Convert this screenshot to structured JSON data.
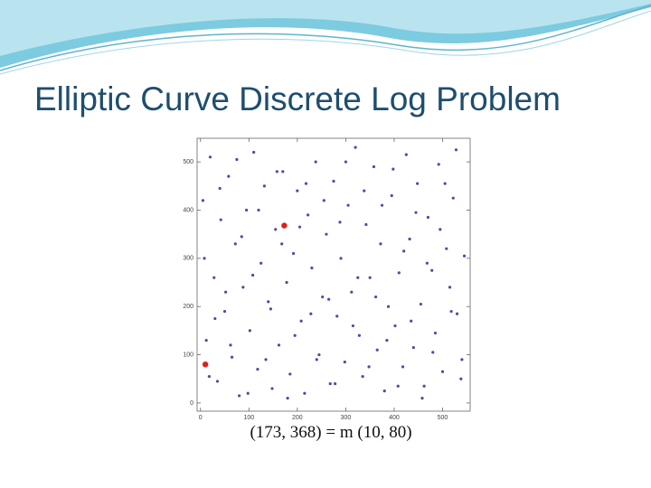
{
  "chart_data": {
    "type": "scatter",
    "title": "Elliptic Curve Discrete Log Problem",
    "caption": "(173, 368) = m (10, 80)",
    "xlim": [
      -7,
      557
    ],
    "ylim": [
      -17,
      549
    ],
    "xticks": [
      0,
      100,
      200,
      300,
      400,
      500
    ],
    "yticks": [
      0,
      100,
      200,
      300,
      400,
      500
    ],
    "series": [
      {
        "color": "#4b4f9e",
        "radius": 1.6,
        "x": [
          5,
          12,
          20,
          28,
          35,
          42,
          50,
          58,
          65,
          72,
          80,
          88,
          95,
          102,
          110,
          118,
          125,
          132,
          140,
          148,
          155,
          162,
          170,
          178,
          185,
          192,
          200,
          208,
          215,
          222,
          230,
          238,
          245,
          252,
          260,
          268,
          275,
          282,
          290,
          298,
          305,
          312,
          320,
          328,
          335,
          342,
          350,
          358,
          365,
          372,
          380,
          388,
          395,
          402,
          410,
          418,
          425,
          432,
          440,
          448,
          455,
          462,
          470,
          478,
          485,
          492,
          500,
          508,
          515,
          522,
          530,
          538,
          545,
          8,
          18,
          30,
          40,
          52,
          62,
          75,
          85,
          98,
          108,
          120,
          135,
          145,
          158,
          168,
          180,
          195,
          205,
          218,
          228,
          240,
          255,
          265,
          278,
          288,
          300,
          315,
          325,
          338,
          348,
          362,
          375,
          385,
          398,
          408,
          420,
          435,
          445,
          458,
          468,
          480,
          495,
          505,
          518,
          528,
          540
        ],
        "values": [
          420,
          130,
          510,
          260,
          45,
          380,
          190,
          470,
          95,
          330,
          15,
          240,
          400,
          150,
          520,
          70,
          290,
          450,
          210,
          30,
          360,
          120,
          480,
          250,
          60,
          310,
          440,
          170,
          20,
          390,
          280,
          500,
          100,
          220,
          350,
          40,
          460,
          180,
          300,
          85,
          410,
          230,
          530,
          140,
          55,
          370,
          260,
          490,
          110,
          330,
          25,
          200,
          430,
          160,
          270,
          75,
          515,
          340,
          115,
          455,
          205,
          35,
          385,
          275,
          145,
          495,
          65,
          320,
          240,
          425,
          185,
          50,
          305,
          300,
          55,
          175,
          445,
          230,
          120,
          505,
          345,
          20,
          265,
          400,
          90,
          195,
          480,
          330,
          10,
          140,
          365,
          455,
          185,
          90,
          420,
          215,
          40,
          375,
          500,
          160,
          260,
          440,
          75,
          220,
          410,
          130,
          485,
          35,
          315,
          170,
          395,
          10,
          290,
          105,
          360,
          455,
          190,
          525,
          90
        ]
      },
      {
        "color": "#e0201b",
        "radius": 3.2,
        "x": [
          173,
          10
        ],
        "values": [
          368,
          80
        ]
      }
    ]
  }
}
